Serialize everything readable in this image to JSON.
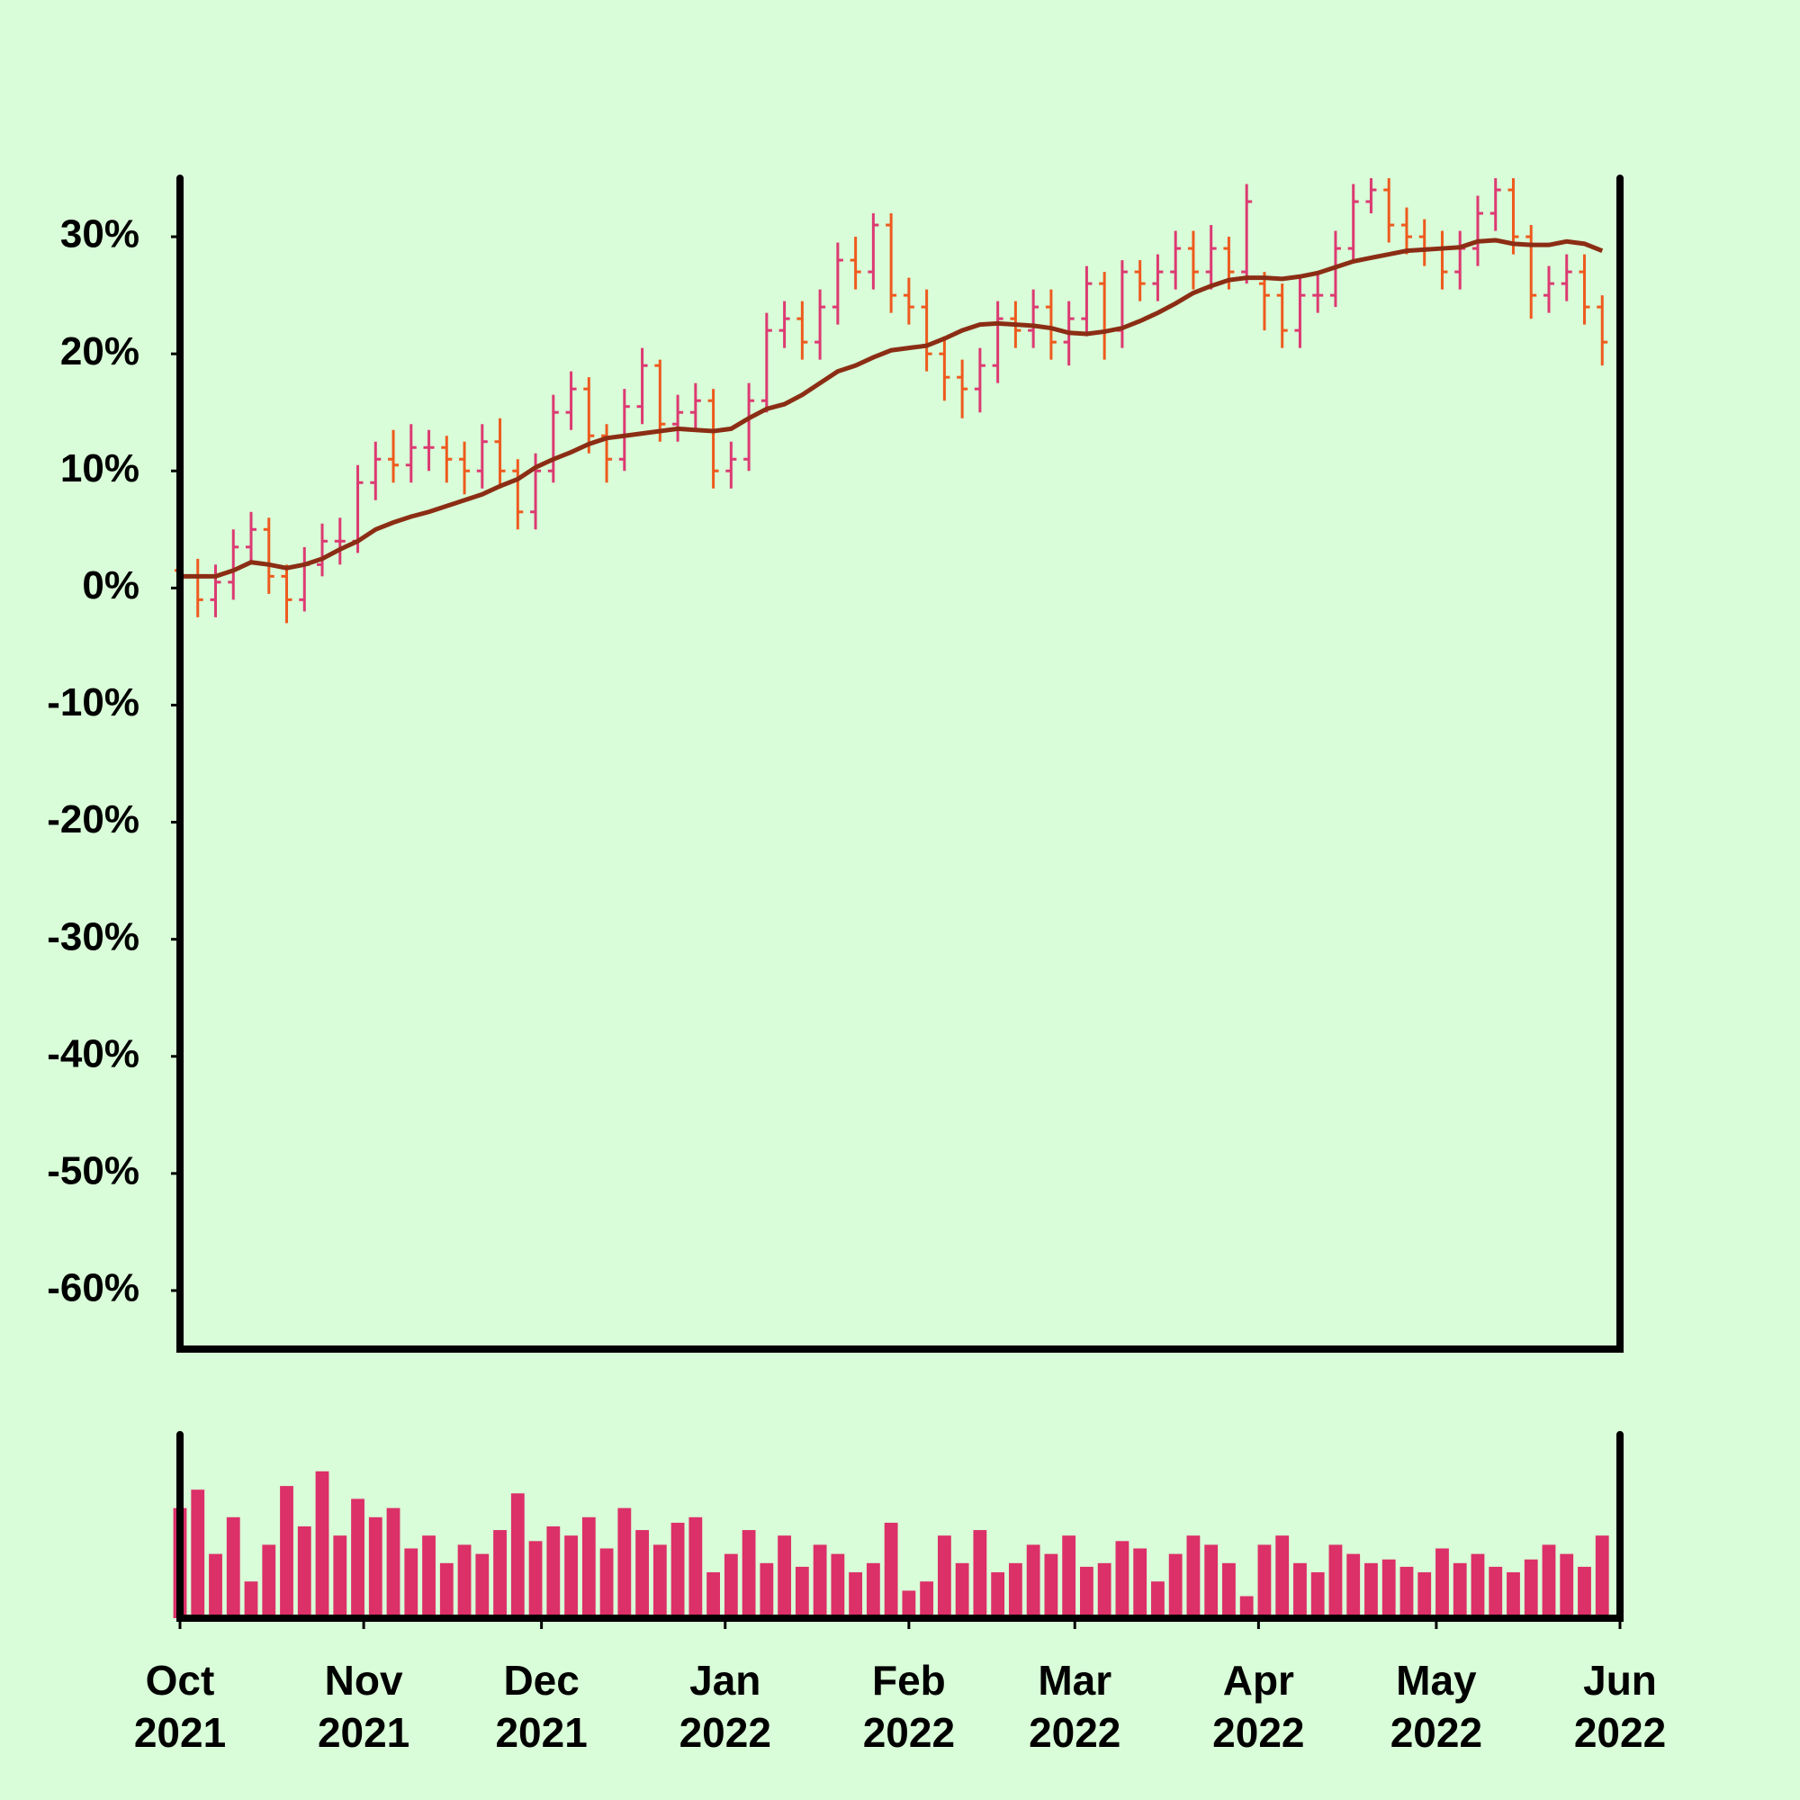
{
  "chart_data": [
    {
      "type": "ohlc",
      "x": [
        0,
        3,
        6,
        9,
        12,
        15,
        18,
        21,
        24,
        27,
        30,
        33,
        36,
        39,
        42,
        45,
        48,
        51,
        54,
        57,
        60,
        63,
        66,
        69,
        72,
        75,
        78,
        81,
        84,
        87,
        90,
        93,
        96,
        99,
        102,
        105,
        108,
        111,
        114,
        117,
        120,
        123,
        126,
        129,
        132,
        135,
        138,
        141,
        144,
        147,
        150,
        153,
        156,
        159,
        162,
        165,
        168,
        171,
        174,
        177,
        180,
        183,
        186,
        189,
        192,
        195,
        198,
        201,
        204,
        207,
        210,
        213,
        216,
        219,
        222,
        225,
        228,
        231,
        234,
        237,
        240
      ],
      "open": [
        1.5,
        1,
        -1,
        0.5,
        3.5,
        5,
        1,
        -1,
        2,
        4,
        4,
        9,
        11,
        10.5,
        12,
        12,
        11,
        10,
        12.5,
        10,
        6.5,
        10,
        15,
        17,
        13,
        11,
        15.5,
        19,
        14,
        15,
        16,
        10,
        11,
        16,
        22,
        23,
        21,
        24,
        28,
        27,
        31,
        25,
        24,
        20,
        18,
        17,
        19,
        23,
        22,
        24,
        21,
        23,
        26,
        22,
        27,
        26,
        27,
        29,
        27,
        29,
        27,
        26,
        25,
        22,
        25,
        25,
        29,
        33,
        34,
        31,
        30,
        29,
        27,
        29,
        32,
        34,
        30,
        25,
        26,
        27,
        24
      ],
      "high": [
        3,
        2.5,
        2,
        5,
        6.5,
        6,
        2,
        3.5,
        5.5,
        6,
        10.5,
        12.5,
        13.5,
        14,
        13.5,
        13,
        12.5,
        14,
        14.5,
        11,
        11.5,
        16.5,
        18.5,
        18,
        14,
        17,
        20.5,
        19.5,
        16.5,
        17.5,
        17,
        12.5,
        17.5,
        23.5,
        24.5,
        24.5,
        25.5,
        29.5,
        30,
        32,
        32,
        26.5,
        25.5,
        21.5,
        19.5,
        20.5,
        24.5,
        24.5,
        25.5,
        25.5,
        24.5,
        27.5,
        27,
        28,
        28,
        28.5,
        30.5,
        30.5,
        31,
        30,
        34.5,
        27,
        26,
        26.5,
        27,
        30.5,
        34.5,
        35,
        35,
        32.5,
        31.5,
        30.5,
        30.5,
        33.5,
        35,
        35,
        31,
        27.5,
        28.5,
        28.5,
        25
      ],
      "low": [
        -0.5,
        -2.5,
        -2.5,
        -1,
        2,
        -0.5,
        -3,
        -2,
        1,
        2,
        3,
        7.5,
        9,
        9,
        10,
        9,
        8,
        8.5,
        8.5,
        5,
        5,
        9,
        13.5,
        11.5,
        9,
        10,
        14,
        12.5,
        12.5,
        13.5,
        8.5,
        8.5,
        10,
        15,
        20.5,
        19.5,
        19.5,
        22.5,
        25.5,
        25.5,
        23.5,
        22.5,
        18.5,
        16,
        14.5,
        15,
        17.5,
        20.5,
        20.5,
        19.5,
        19,
        21.5,
        19.5,
        20.5,
        24.5,
        24.5,
        25.5,
        25.5,
        25.5,
        25.5,
        26,
        22,
        20.5,
        20.5,
        23.5,
        24,
        28,
        32,
        29.5,
        28.5,
        27.5,
        25.5,
        25.5,
        27.5,
        30.5,
        28.5,
        23,
        23.5,
        24.5,
        22.5,
        19
      ],
      "close": [
        1,
        -1,
        0.5,
        3.5,
        5,
        1,
        -1,
        2,
        4,
        4,
        9,
        11,
        10.5,
        12,
        12,
        11,
        10,
        12.5,
        10,
        6.5,
        10,
        15,
        17,
        13,
        11,
        15.5,
        19,
        14,
        15,
        16,
        10,
        11,
        16,
        22,
        23,
        21,
        24,
        28,
        27,
        31,
        25,
        24,
        20,
        18,
        17,
        19,
        23,
        22,
        24,
        21,
        23,
        26,
        22,
        27,
        26,
        27,
        29,
        27,
        29,
        27,
        33,
        25,
        22,
        25,
        25,
        29,
        33,
        34,
        31,
        30,
        29,
        27,
        29,
        32,
        34,
        30,
        25,
        26,
        27,
        24,
        21
      ],
      "up_color": "#dc3a72",
      "down_color": "#ee5a1e",
      "ma": {
        "color": "#8b2d14",
        "values": [
          1,
          1,
          1,
          1.5,
          2.2,
          2,
          1.7,
          2,
          2.5,
          3.3,
          4,
          5,
          5.6,
          6.1,
          6.5,
          7,
          7.5,
          8,
          8.7,
          9.3,
          10.3,
          11,
          11.6,
          12.3,
          12.8,
          13,
          13.2,
          13.4,
          13.6,
          13.5,
          13.4,
          13.6,
          14.5,
          15.3,
          15.7,
          16.5,
          17.5,
          18.5,
          19,
          19.7,
          20.3,
          20.5,
          20.7,
          21.3,
          22,
          22.5,
          22.6,
          22.5,
          22.4,
          22.2,
          21.8,
          21.7,
          21.9,
          22.2,
          22.8,
          23.5,
          24.3,
          25.2,
          25.8,
          26.3,
          26.5,
          26.5,
          26.4,
          26.6,
          26.9,
          27.4,
          27.9,
          28.2,
          28.5,
          28.8,
          28.9,
          29,
          29.1,
          29.6,
          29.7,
          29.4,
          29.3,
          29.3,
          29.6,
          29.4,
          28.8
        ]
      },
      "xlim": [
        0,
        243
      ],
      "ylim": [
        -65,
        35
      ],
      "yticks": [
        {
          "value": -60,
          "label": "-60%"
        },
        {
          "value": -50,
          "label": "-50%"
        },
        {
          "value": -40,
          "label": "-40%"
        },
        {
          "value": -30,
          "label": "-30%"
        },
        {
          "value": -20,
          "label": "-20%"
        },
        {
          "value": -10,
          "label": "-10%"
        },
        {
          "value": 0,
          "label": "0%"
        },
        {
          "value": 10,
          "label": "10%"
        },
        {
          "value": 20,
          "label": "20%"
        },
        {
          "value": 30,
          "label": "30%"
        }
      ]
    },
    {
      "type": "bar",
      "values": [
        60,
        70,
        35,
        55,
        20,
        40,
        72,
        50,
        80,
        45,
        65,
        55,
        60,
        38,
        45,
        30,
        40,
        35,
        48,
        68,
        42,
        50,
        45,
        55,
        38,
        60,
        48,
        40,
        52,
        55,
        25,
        35,
        48,
        30,
        45,
        28,
        40,
        35,
        25,
        30,
        52,
        15,
        20,
        45,
        30,
        48,
        25,
        30,
        40,
        35,
        45,
        28,
        30,
        42,
        38,
        20,
        35,
        45,
        40,
        30,
        12,
        40,
        45,
        30,
        25,
        40,
        35,
        30,
        32,
        28,
        25,
        38,
        30,
        35,
        28,
        25,
        32,
        40,
        35,
        28,
        45
      ],
      "color": "#dc3068",
      "xlim": [
        0,
        243
      ],
      "ylim": [
        0,
        100
      ],
      "xticks": [
        {
          "value": 0,
          "label": "Oct\n2021"
        },
        {
          "value": 31,
          "label": "Nov\n2021"
        },
        {
          "value": 61,
          "label": "Dec\n2021"
        },
        {
          "value": 92,
          "label": "Jan\n2022"
        },
        {
          "value": 123,
          "label": "Feb\n2022"
        },
        {
          "value": 151,
          "label": "Mar\n2022"
        },
        {
          "value": 182,
          "label": "Apr\n2022"
        },
        {
          "value": 212,
          "label": "May\n2022"
        },
        {
          "value": 243,
          "label": "Jun\n2022"
        }
      ]
    }
  ]
}
